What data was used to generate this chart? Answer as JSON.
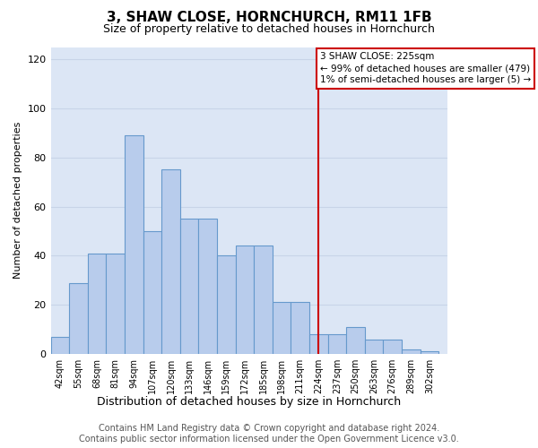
{
  "title": "3, SHAW CLOSE, HORNCHURCH, RM11 1FB",
  "subtitle": "Size of property relative to detached houses in Hornchurch",
  "xlabel": "Distribution of detached houses by size in Hornchurch",
  "ylabel": "Number of detached properties",
  "bar_labels": [
    "42sqm",
    "55sqm",
    "68sqm",
    "81sqm",
    "94sqm",
    "107sqm",
    "120sqm",
    "133sqm",
    "146sqm",
    "159sqm",
    "172sqm",
    "185sqm",
    "198sqm",
    "211sqm",
    "224sqm",
    "237sqm",
    "250sqm",
    "263sqm",
    "276sqm",
    "289sqm",
    "302sqm"
  ],
  "bins": [
    42,
    55,
    68,
    81,
    94,
    107,
    120,
    133,
    146,
    159,
    172,
    185,
    198,
    211,
    224,
    237,
    250,
    263,
    276,
    289,
    302
  ],
  "heights": [
    7,
    29,
    41,
    41,
    89,
    50,
    75,
    55,
    55,
    40,
    44,
    44,
    21,
    21,
    8,
    8,
    11,
    6,
    6,
    2,
    1
  ],
  "bar_color": "#b8ccec",
  "bar_edge_color": "#6699cc",
  "vline_x": 224,
  "vline_color": "#cc0000",
  "annotation_text": "3 SHAW CLOSE: 225sqm\n← 99% of detached houses are smaller (479)\n1% of semi-detached houses are larger (5) →",
  "annotation_box_color": "#ffffff",
  "annotation_box_edge": "#cc0000",
  "ylim": [
    0,
    125
  ],
  "yticks": [
    0,
    20,
    40,
    60,
    80,
    100,
    120
  ],
  "grid_color": "#c8d4e8",
  "background_color": "#dce6f5",
  "footer_text": "Contains HM Land Registry data © Crown copyright and database right 2024.\nContains public sector information licensed under the Open Government Licence v3.0.",
  "title_fontsize": 11,
  "subtitle_fontsize": 9,
  "ylabel_fontsize": 8,
  "xlabel_fontsize": 9,
  "tick_fontsize": 7,
  "footer_fontsize": 7,
  "annotation_fontsize": 7.5
}
